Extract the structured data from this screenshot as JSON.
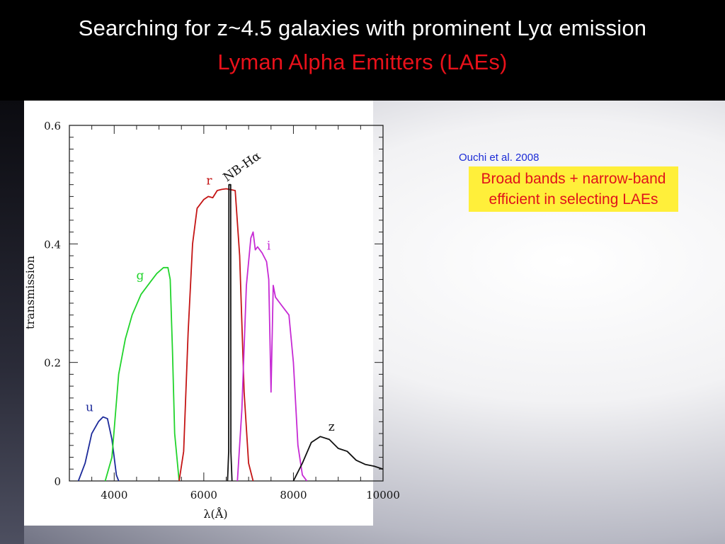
{
  "slide": {
    "title": "Searching for z~4.5 galaxies with prominent Lyα emission",
    "subtitle": "Lyman Alpha Emitters (LAEs)",
    "citation": "Ouchi et al. 2008",
    "highlight_line1": "Broad bands + narrow-band",
    "highlight_line2": "efficient in selecting LAEs",
    "colors": {
      "title": "#ffffff",
      "subtitle": "#e8111a",
      "citation": "#1b2bd6",
      "highlight_bg": "#ffef3a",
      "highlight_text": "#e0121a"
    }
  },
  "chart_data": {
    "type": "line",
    "title": "",
    "xlabel": "λ(Å)",
    "ylabel": "transmission",
    "xlim": [
      3000,
      10000
    ],
    "ylim": [
      0,
      0.6
    ],
    "x_ticks": [
      4000,
      6000,
      8000,
      10000
    ],
    "x_tick_labels": [
      "4000",
      "6000",
      "8000",
      "10000"
    ],
    "y_ticks": [
      0,
      0.2,
      0.4,
      0.6
    ],
    "y_tick_labels": [
      "0",
      "0.2",
      "0.4",
      "0.6"
    ],
    "series": [
      {
        "name": "u",
        "color": "#1c2a9a",
        "x": [
          3200,
          3350,
          3500,
          3650,
          3750,
          3850,
          3950,
          4050,
          4100
        ],
        "y": [
          0.0,
          0.03,
          0.08,
          0.1,
          0.108,
          0.105,
          0.07,
          0.01,
          0.0
        ]
      },
      {
        "name": "g",
        "color": "#21d42c",
        "x": [
          3800,
          3950,
          4100,
          4250,
          4400,
          4600,
          4800,
          4950,
          5100,
          5200,
          5250,
          5300,
          5350,
          5450
        ],
        "y": [
          0.0,
          0.04,
          0.18,
          0.24,
          0.28,
          0.315,
          0.335,
          0.35,
          0.36,
          0.36,
          0.34,
          0.22,
          0.08,
          0.0
        ]
      },
      {
        "name": "r",
        "color": "#c41414",
        "x": [
          5450,
          5550,
          5650,
          5750,
          5850,
          6000,
          6100,
          6200,
          6300,
          6400,
          6500,
          6700,
          6800,
          6900,
          7000,
          7100
        ],
        "y": [
          0.0,
          0.05,
          0.25,
          0.4,
          0.46,
          0.475,
          0.48,
          0.478,
          0.49,
          0.492,
          0.493,
          0.49,
          0.38,
          0.15,
          0.03,
          0.0
        ]
      },
      {
        "name": "NB-Hα",
        "color": "#111111",
        "x": [
          6530,
          6555,
          6560,
          6580,
          6600,
          6605,
          6630
        ],
        "y": [
          0.0,
          0.05,
          0.5,
          0.5,
          0.5,
          0.05,
          0.0
        ]
      },
      {
        "name": "i",
        "color": "#c62ad4",
        "x": [
          6750,
          6850,
          6950,
          7050,
          7100,
          7150,
          7200,
          7300,
          7400,
          7450,
          7500,
          7550,
          7600,
          7700,
          7800,
          7900,
          8000,
          8100,
          8200,
          8300
        ],
        "y": [
          0.0,
          0.12,
          0.33,
          0.41,
          0.42,
          0.39,
          0.395,
          0.385,
          0.37,
          0.34,
          0.15,
          0.33,
          0.31,
          0.3,
          0.29,
          0.28,
          0.2,
          0.06,
          0.01,
          0.0
        ]
      },
      {
        "name": "z",
        "color": "#111111",
        "x": [
          8000,
          8200,
          8400,
          8600,
          8800,
          9000,
          9200,
          9400,
          9600,
          9800,
          10000
        ],
        "y": [
          0.0,
          0.03,
          0.065,
          0.075,
          0.07,
          0.055,
          0.05,
          0.035,
          0.028,
          0.025,
          0.02
        ]
      }
    ]
  }
}
